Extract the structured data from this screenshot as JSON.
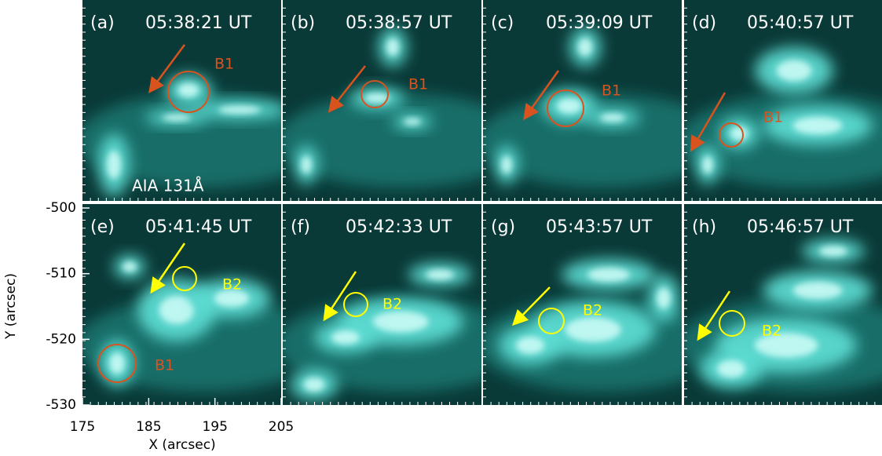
{
  "figure": {
    "instrument": "AIA 131Å",
    "x_axis": {
      "label": "X (arcsec)",
      "lim": [
        175,
        205
      ],
      "ticks": [
        175,
        185,
        195,
        205
      ]
    },
    "y_axis": {
      "label": "Y (arcsec)",
      "lim": [
        -530,
        -499.4
      ],
      "ticks": [
        -500,
        -510,
        -520,
        -530
      ]
    },
    "panels": [
      {
        "label": "(a)",
        "time": "05:38:21 UT",
        "markers": [
          {
            "name": "B1",
            "color": "#d9531e"
          }
        ]
      },
      {
        "label": "(b)",
        "time": "05:38:57 UT",
        "markers": [
          {
            "name": "B1",
            "color": "#d9531e"
          }
        ]
      },
      {
        "label": "(c)",
        "time": "05:39:09 UT",
        "markers": [
          {
            "name": "B1",
            "color": "#d9531e"
          }
        ]
      },
      {
        "label": "(d)",
        "time": "05:40:57 UT",
        "markers": [
          {
            "name": "B1",
            "color": "#d9531e"
          }
        ]
      },
      {
        "label": "(e)",
        "time": "05:41:45 UT",
        "markers": [
          {
            "name": "B2",
            "color": "#ffff00"
          },
          {
            "name": "B1",
            "color": "#d9531e"
          }
        ]
      },
      {
        "label": "(f)",
        "time": "05:42:33 UT",
        "markers": [
          {
            "name": "B2",
            "color": "#ffff00"
          }
        ]
      },
      {
        "label": "(g)",
        "time": "05:43:57 UT",
        "markers": [
          {
            "name": "B2",
            "color": "#ffff00"
          }
        ]
      },
      {
        "label": "(h)",
        "time": "05:46:57 UT",
        "markers": [
          {
            "name": "B2",
            "color": "#ffff00"
          }
        ]
      }
    ]
  }
}
